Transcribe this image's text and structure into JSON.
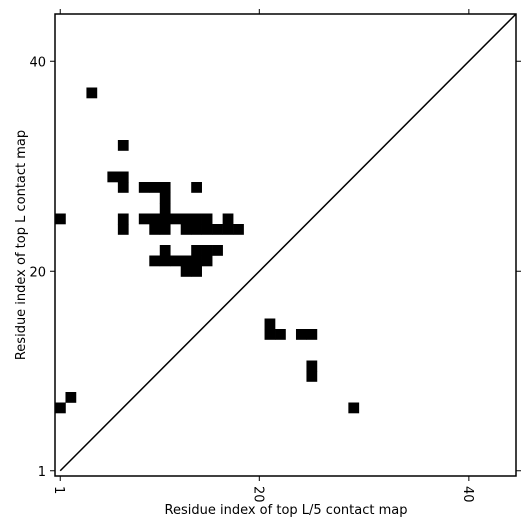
{
  "chart_data": {
    "type": "scatter",
    "marker": "square",
    "color": "#000000",
    "xlabel": "Residue index of top L/5 contact map",
    "ylabel": "Residue index of top L contact map",
    "x": [
      4,
      7,
      6,
      7,
      7,
      1,
      7,
      7,
      9,
      10,
      11,
      14,
      11,
      11,
      9,
      10,
      11,
      12,
      13,
      14,
      15,
      17,
      10,
      11,
      13,
      14,
      15,
      16,
      17,
      18,
      11,
      14,
      15,
      16,
      10,
      11,
      12,
      13,
      14,
      15,
      13,
      14,
      21,
      21,
      22,
      24,
      25,
      25,
      25,
      29,
      1,
      2
    ],
    "y": [
      37,
      32,
      29,
      29,
      28,
      25,
      25,
      24,
      28,
      28,
      28,
      28,
      27,
      26,
      25,
      25,
      25,
      25,
      25,
      25,
      25,
      25,
      24,
      24,
      24,
      24,
      24,
      24,
      24,
      24,
      22,
      22,
      22,
      22,
      21,
      21,
      21,
      21,
      21,
      21,
      20,
      20,
      15,
      14,
      14,
      14,
      14,
      11,
      10,
      7,
      7,
      8
    ],
    "xlim": [
      0.5,
      44.5
    ],
    "ylim": [
      0.5,
      44.5
    ],
    "xticks": [
      1,
      20,
      40
    ],
    "yticks": [
      1,
      20,
      40
    ],
    "diagonal": true
  }
}
